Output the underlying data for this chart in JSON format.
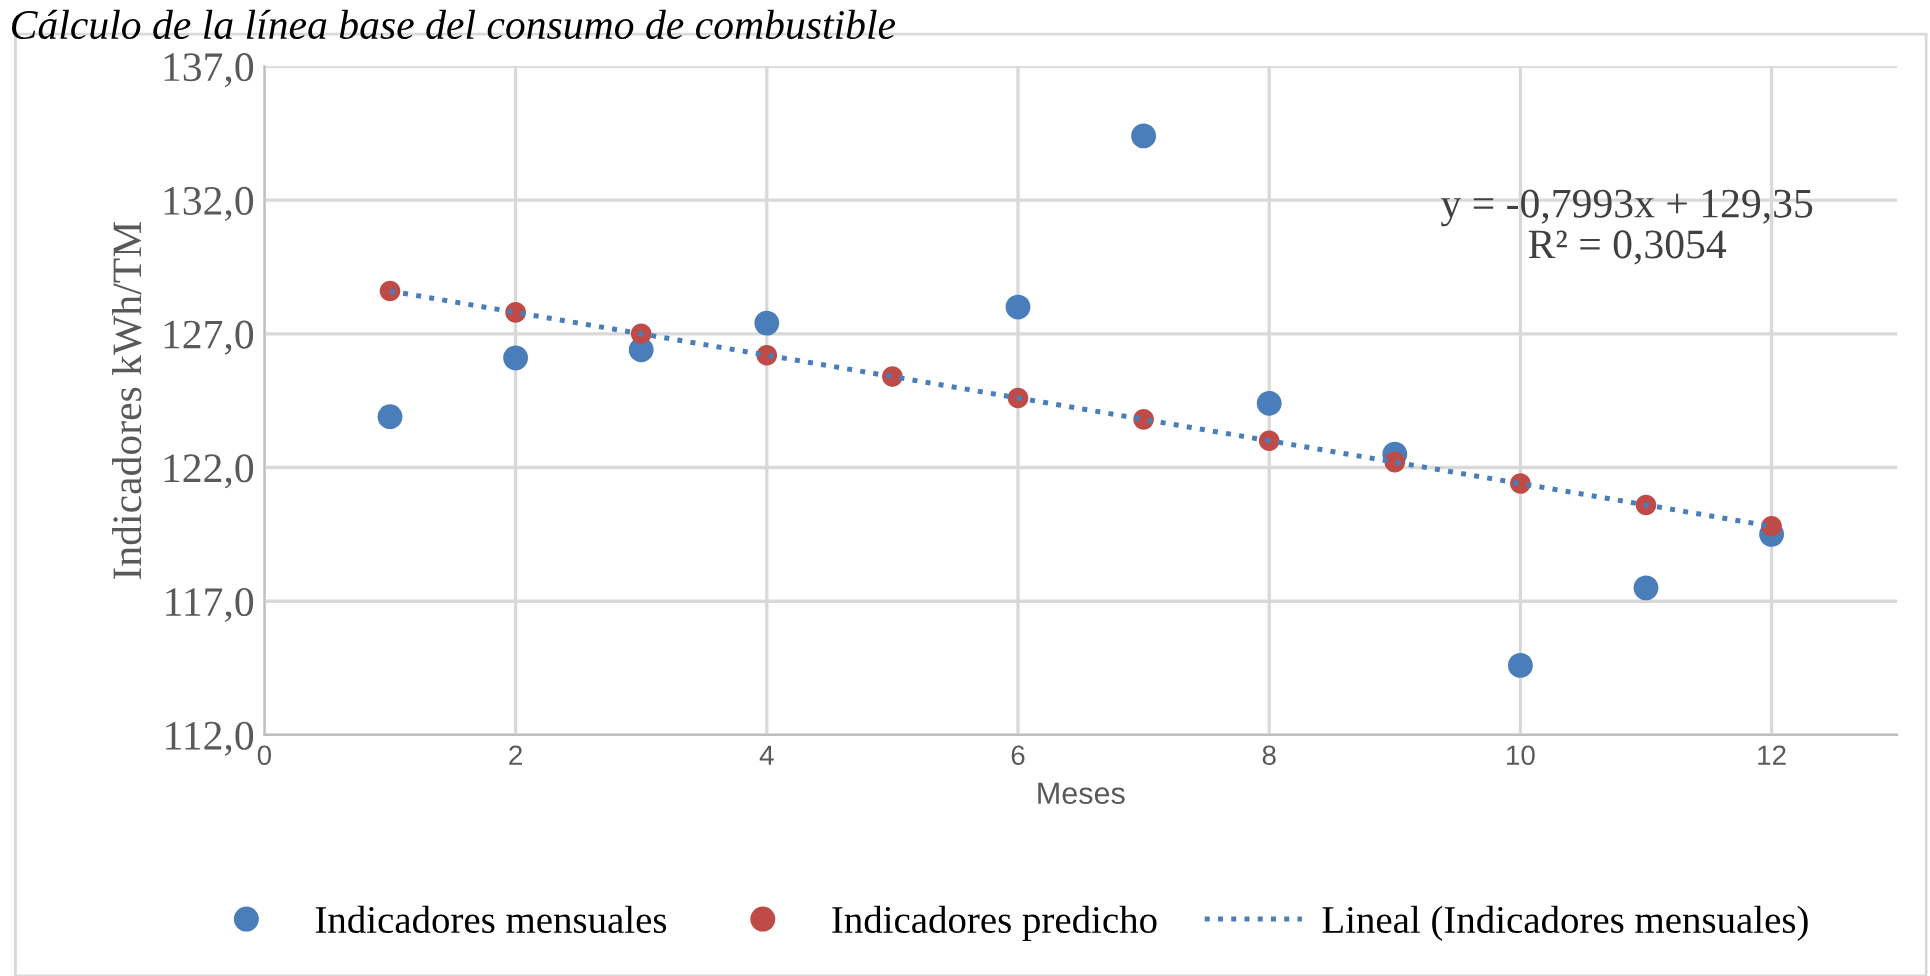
{
  "chart_data": {
    "type": "scatter",
    "title": "Cálculo de la línea base del consumo de combustible",
    "xlabel": "Meses",
    "ylabel": "Indicadores kWh/TM",
    "series": [
      {
        "name": "Indicadores mensuales",
        "color": "#4a7ebb",
        "x": [
          1,
          2,
          3,
          4,
          5,
          6,
          7,
          8,
          9,
          10,
          11,
          12
        ],
        "values": [
          123.9,
          126.1,
          126.4,
          127.4,
          null,
          128.0,
          134.4,
          124.4,
          122.5,
          114.6,
          117.5,
          119.5
        ]
      },
      {
        "name": "Indicadores predicho",
        "color": "#be4b48",
        "x": [
          1,
          2,
          3,
          4,
          5,
          6,
          7,
          8,
          9,
          10,
          11,
          12
        ],
        "values": [
          128.6,
          127.8,
          127.0,
          126.2,
          125.4,
          124.6,
          123.8,
          123.0,
          122.2,
          121.4,
          120.6,
          119.8
        ]
      },
      {
        "name": "Lineal (Indicadores mensuales)",
        "type": "line",
        "line_style": "dotted",
        "marker": "none",
        "color": "#4a7ebb",
        "x": [
          1,
          12
        ],
        "values": [
          128.6,
          119.8
        ]
      }
    ],
    "xlim": [
      0,
      13
    ],
    "xticks": [
      0,
      2,
      4,
      6,
      8,
      10,
      12
    ],
    "ylim": [
      112,
      137
    ],
    "yticks": [
      {
        "value": 112,
        "label": "112,0"
      },
      {
        "value": 117,
        "label": "117,0"
      },
      {
        "value": 122,
        "label": "122,0"
      },
      {
        "value": 127,
        "label": "127,0"
      },
      {
        "value": 132,
        "label": "132,0"
      },
      {
        "value": 137,
        "label": "137,0"
      }
    ],
    "annotations": [
      "y = -0,7993x + 129,35\nR² = 0,3054"
    ],
    "grid": true,
    "legend": "bottom",
    "marker": "circle"
  }
}
